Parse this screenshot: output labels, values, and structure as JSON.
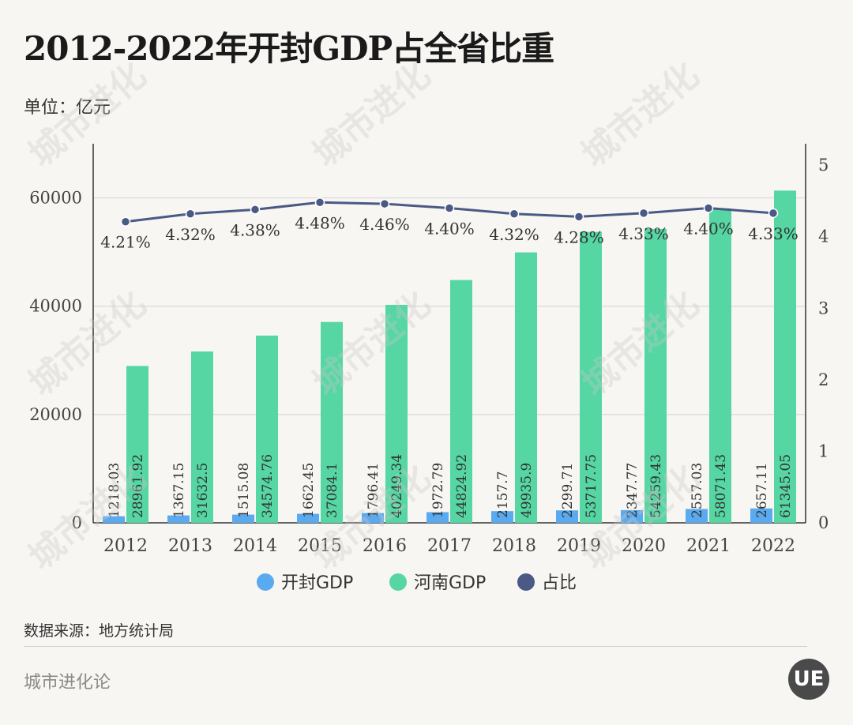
{
  "title": "2012-2022年开封GDP占全省比重",
  "unit": "单位：亿元",
  "source": "数据来源：地方统计局",
  "brand": "城市进化论",
  "logo": "UE",
  "colors": {
    "kaifeng": "#5aaaf0",
    "henan": "#55d6a3",
    "ratio": "#4a5a85",
    "grid": "#d8d8d8"
  },
  "chart_data": {
    "type": "bar",
    "categories": [
      "2012",
      "2013",
      "2014",
      "2015",
      "2016",
      "2017",
      "2018",
      "2019",
      "2020",
      "2021",
      "2022"
    ],
    "series": [
      {
        "name": "开封GDP",
        "type": "bar",
        "axis": "left",
        "values": [
          1218.03,
          1367.15,
          1515.08,
          1662.45,
          1796.41,
          1972.79,
          2157.7,
          2299.71,
          2347.77,
          2557.03,
          2657.11
        ],
        "labels": [
          "1218.03",
          "1367.15",
          "1515.08",
          "1662.45",
          "1796.41",
          "1972.79",
          "2157.7",
          "2299.71",
          "2347.77",
          "2557.03",
          "2657.11"
        ]
      },
      {
        "name": "河南GDP",
        "type": "bar",
        "axis": "left",
        "values": [
          28961.92,
          31632.5,
          34574.76,
          37084.1,
          40249.34,
          44824.92,
          49935.9,
          53717.75,
          54259.43,
          58071.43,
          61345.05
        ],
        "labels": [
          "28961.92",
          "31632.5",
          "34574.76",
          "37084.1",
          "40249.34",
          "44824.92",
          "49935.9",
          "53717.75",
          "54259.43",
          "58071.43",
          "61345.05"
        ]
      },
      {
        "name": "占比",
        "type": "line",
        "axis": "right",
        "values": [
          4.21,
          4.32,
          4.38,
          4.48,
          4.46,
          4.4,
          4.32,
          4.28,
          4.33,
          4.4,
          4.33
        ],
        "labels": [
          "4.21%",
          "4.32%",
          "4.38%",
          "4.48%",
          "4.46%",
          "4.40%",
          "4.32%",
          "4.28%",
          "4.33%",
          "4.40%",
          "4.33%"
        ]
      }
    ],
    "left_axis": {
      "ylim": [
        0,
        70000
      ],
      "ticks": [
        0,
        20000,
        40000,
        60000
      ],
      "tick_labels": [
        "0",
        "20000",
        "40000",
        "60000"
      ]
    },
    "right_axis": {
      "ylim": [
        0,
        5.3
      ],
      "ticks": [
        0,
        1,
        2,
        3,
        4,
        5
      ],
      "tick_labels": [
        "0",
        "1",
        "2",
        "3",
        "4",
        "5"
      ]
    },
    "legend": {
      "position": "bottom",
      "items": [
        "开封GDP",
        "河南GDP",
        "占比"
      ]
    }
  }
}
